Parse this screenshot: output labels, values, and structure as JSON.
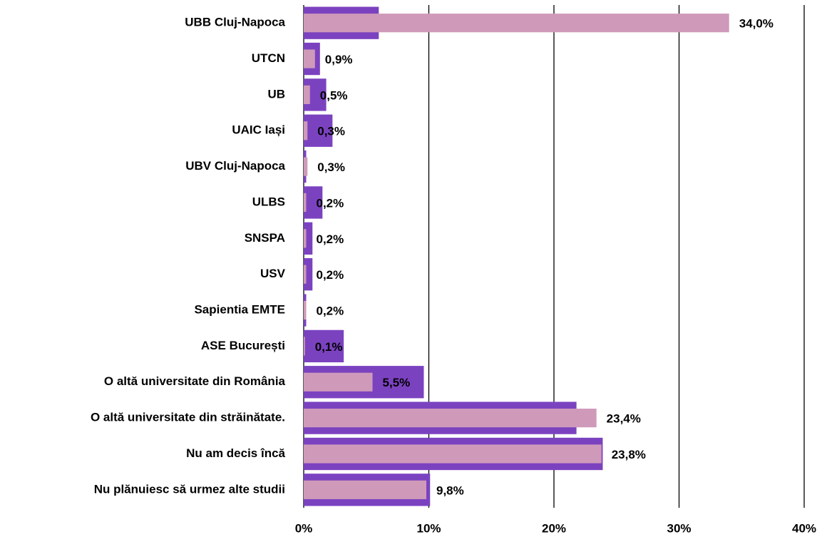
{
  "chart_data": {
    "type": "bar",
    "orientation": "horizontal",
    "categories": [
      "UBB Cluj-Napoca",
      "UTCN",
      "UB",
      "UAIC Iași",
      "UBV Cluj-Napoca",
      "ULBS",
      "SNSPA",
      "USV",
      "Sapientia EMTE",
      "ASE București",
      "O altă universitate din România",
      "O altă universitate din străinătate.",
      "Nu am decis încă",
      "Nu plănuiesc să urmez alte studii"
    ],
    "series": [
      {
        "color": "#7b42c0",
        "values": [
          6.0,
          1.3,
          1.8,
          2.3,
          0.2,
          1.5,
          0.7,
          0.7,
          0.2,
          3.2,
          9.6,
          21.8,
          23.9,
          10.1
        ]
      },
      {
        "color": "#cf9ab9",
        "values": [
          34.0,
          0.9,
          0.5,
          0.3,
          0.3,
          0.2,
          0.2,
          0.2,
          0.2,
          0.1,
          5.5,
          23.4,
          23.8,
          9.8
        ],
        "value_labels": [
          "34,0%",
          "0,9%",
          "0,5%",
          "0,3%",
          "0,3%",
          "0,2%",
          "0,2%",
          "0,2%",
          "0,2%",
          "0,1%",
          "5,5%",
          "23,4%",
          "23,8%",
          "9,8%"
        ]
      }
    ],
    "xlim": [
      0,
      40
    ],
    "xticks": [
      {
        "value": 0,
        "label": "0%"
      },
      {
        "value": 10,
        "label": "10%"
      },
      {
        "value": 20,
        "label": "20%"
      },
      {
        "value": 30,
        "label": "30%"
      },
      {
        "value": 40,
        "label": "40%"
      }
    ],
    "grid": true
  }
}
